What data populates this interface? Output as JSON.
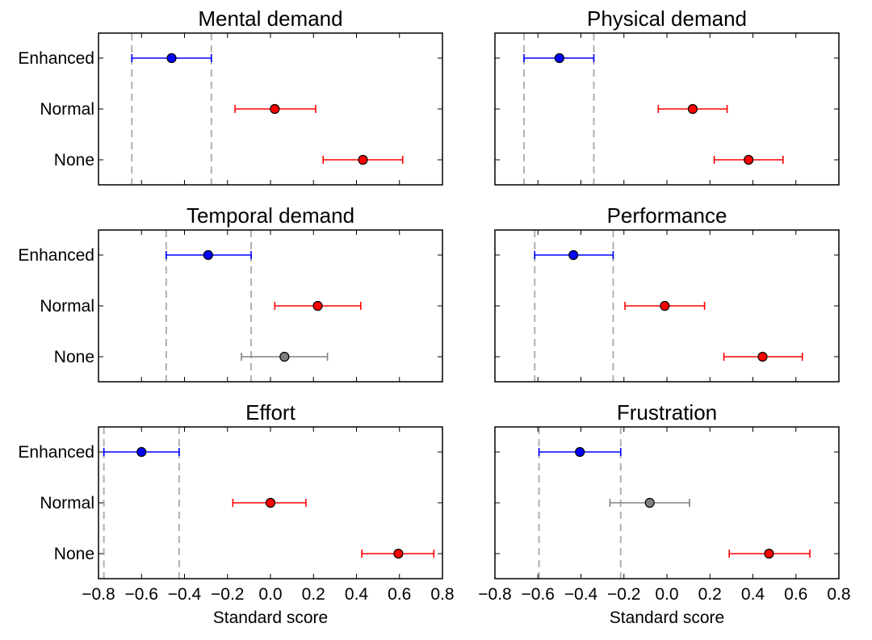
{
  "figure": {
    "xlabel": "Standard score"
  },
  "chart_data": [
    {
      "type": "scatter",
      "title": "Mental demand",
      "xlim": [
        -0.8,
        0.8
      ],
      "xticks": [
        "−0.8",
        "−0.6",
        "−0.4",
        "−0.2",
        "0.0",
        "0.2",
        "0.4",
        "0.6",
        "0.8"
      ],
      "show_xticklabels": false,
      "show_yticklabels": true,
      "categories": [
        "Enhanced",
        "Normal",
        "None"
      ],
      "reference_lines": [
        -0.645,
        -0.275
      ],
      "points": [
        {
          "category": "Enhanced",
          "x": -0.46,
          "ci": [
            -0.645,
            -0.275
          ],
          "color": "#0000ff"
        },
        {
          "category": "Normal",
          "x": 0.02,
          "ci": [
            -0.165,
            0.21
          ],
          "color": "#ff0000"
        },
        {
          "category": "None",
          "x": 0.43,
          "ci": [
            0.245,
            0.615
          ],
          "color": "#ff0000"
        }
      ]
    },
    {
      "type": "scatter",
      "title": "Physical demand",
      "xlim": [
        -0.8,
        0.8
      ],
      "xticks": [
        "−0.8",
        "−0.6",
        "−0.4",
        "−0.2",
        "0.0",
        "0.2",
        "0.4",
        "0.6",
        "0.8"
      ],
      "show_xticklabels": false,
      "show_yticklabels": false,
      "categories": [
        "Enhanced",
        "Normal",
        "None"
      ],
      "reference_lines": [
        -0.665,
        -0.34
      ],
      "points": [
        {
          "category": "Enhanced",
          "x": -0.5,
          "ci": [
            -0.665,
            -0.34
          ],
          "color": "#0000ff"
        },
        {
          "category": "Normal",
          "x": 0.12,
          "ci": [
            -0.04,
            0.28
          ],
          "color": "#ff0000"
        },
        {
          "category": "None",
          "x": 0.38,
          "ci": [
            0.22,
            0.54
          ],
          "color": "#ff0000"
        }
      ]
    },
    {
      "type": "scatter",
      "title": "Temporal demand",
      "xlim": [
        -0.8,
        0.8
      ],
      "xticks": [
        "−0.8",
        "−0.6",
        "−0.4",
        "−0.2",
        "0.0",
        "0.2",
        "0.4",
        "0.6",
        "0.8"
      ],
      "show_xticklabels": false,
      "show_yticklabels": true,
      "categories": [
        "Enhanced",
        "Normal",
        "None"
      ],
      "reference_lines": [
        -0.485,
        -0.09
      ],
      "points": [
        {
          "category": "Enhanced",
          "x": -0.29,
          "ci": [
            -0.485,
            -0.09
          ],
          "color": "#0000ff"
        },
        {
          "category": "Normal",
          "x": 0.22,
          "ci": [
            0.02,
            0.42
          ],
          "color": "#ff0000"
        },
        {
          "category": "None",
          "x": 0.065,
          "ci": [
            -0.135,
            0.265
          ],
          "color": "#808080"
        }
      ]
    },
    {
      "type": "scatter",
      "title": "Performance",
      "xlim": [
        -0.8,
        0.8
      ],
      "xticks": [
        "−0.8",
        "−0.6",
        "−0.4",
        "−0.2",
        "0.0",
        "0.2",
        "0.4",
        "0.6",
        "0.8"
      ],
      "show_xticklabels": false,
      "show_yticklabels": false,
      "categories": [
        "Enhanced",
        "Normal",
        "None"
      ],
      "reference_lines": [
        -0.615,
        -0.25
      ],
      "points": [
        {
          "category": "Enhanced",
          "x": -0.435,
          "ci": [
            -0.615,
            -0.25
          ],
          "color": "#0000ff"
        },
        {
          "category": "Normal",
          "x": -0.01,
          "ci": [
            -0.195,
            0.175
          ],
          "color": "#ff0000"
        },
        {
          "category": "None",
          "x": 0.445,
          "ci": [
            0.265,
            0.63
          ],
          "color": "#ff0000"
        }
      ]
    },
    {
      "type": "scatter",
      "title": "Effort",
      "xlim": [
        -0.8,
        0.8
      ],
      "xticks": [
        "−0.8",
        "−0.6",
        "−0.4",
        "−0.2",
        "0.0",
        "0.2",
        "0.4",
        "0.6",
        "0.8"
      ],
      "show_xticklabels": true,
      "show_yticklabels": true,
      "categories": [
        "Enhanced",
        "Normal",
        "None"
      ],
      "reference_lines": [
        -0.775,
        -0.425
      ],
      "points": [
        {
          "category": "Enhanced",
          "x": -0.6,
          "ci": [
            -0.775,
            -0.425
          ],
          "color": "#0000ff"
        },
        {
          "category": "Normal",
          "x": 0.0,
          "ci": [
            -0.175,
            0.165
          ],
          "color": "#ff0000"
        },
        {
          "category": "None",
          "x": 0.595,
          "ci": [
            0.425,
            0.76
          ],
          "color": "#ff0000"
        }
      ]
    },
    {
      "type": "scatter",
      "title": "Frustration",
      "xlim": [
        -0.8,
        0.8
      ],
      "xticks": [
        "−0.8",
        "−0.6",
        "−0.4",
        "−0.2",
        "0.0",
        "0.2",
        "0.4",
        "0.6",
        "0.8"
      ],
      "show_xticklabels": true,
      "show_yticklabels": false,
      "categories": [
        "Enhanced",
        "Normal",
        "None"
      ],
      "reference_lines": [
        -0.595,
        -0.215
      ],
      "points": [
        {
          "category": "Enhanced",
          "x": -0.405,
          "ci": [
            -0.595,
            -0.215
          ],
          "color": "#0000ff"
        },
        {
          "category": "Normal",
          "x": -0.08,
          "ci": [
            -0.265,
            0.105
          ],
          "color": "#808080"
        },
        {
          "category": "None",
          "x": 0.475,
          "ci": [
            0.29,
            0.665
          ],
          "color": "#ff0000"
        }
      ]
    }
  ]
}
